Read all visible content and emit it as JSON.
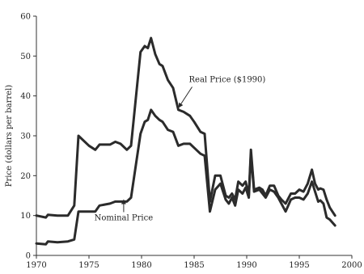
{
  "chart_data": {
    "type": "line",
    "ylabel": "Price (dollars per barrel)",
    "xlim": [
      1970,
      2000
    ],
    "ylim": [
      0,
      60
    ],
    "x_ticks": [
      1970,
      1975,
      1980,
      1985,
      1990,
      1995,
      2000
    ],
    "y_ticks": [
      0,
      10,
      20,
      30,
      40,
      50,
      60
    ],
    "series": [
      {
        "name": "Real Price ($1990)",
        "x": [
          1970,
          1970.9,
          1971.1,
          1972,
          1973,
          1973.6,
          1974,
          1975,
          1975.6,
          1976,
          1977,
          1977.5,
          1978,
          1978.6,
          1979,
          1979.9,
          1980.3,
          1980.6,
          1980.9,
          1981.3,
          1981.7,
          1982,
          1982.5,
          1983,
          1983.5,
          1984,
          1984.6,
          1985,
          1985.6,
          1986,
          1986.5,
          1987,
          1987.5,
          1988,
          1988.3,
          1988.6,
          1988.9,
          1989.2,
          1989.6,
          1989.9,
          1990.2,
          1990.4,
          1990.7,
          1991.2,
          1991.5,
          1991.8,
          1992.2,
          1992.6,
          1993,
          1993.3,
          1993.7,
          1994.2,
          1994.6,
          1995,
          1995.4,
          1995.8,
          1996.2,
          1996.5,
          1996.8,
          1997,
          1997.3,
          1997.6,
          1997.9,
          1998.4
        ],
        "values": [
          10,
          9.5,
          10.2,
          10,
          10,
          12.5,
          30,
          27.5,
          26.5,
          27.8,
          27.8,
          28.5,
          28,
          26.5,
          27.5,
          51,
          52.5,
          52,
          54.5,
          50.5,
          48,
          47.5,
          44,
          42,
          36.5,
          36,
          35,
          33.5,
          31,
          30.5,
          13.5,
          20,
          20,
          15,
          14.5,
          15.5,
          14,
          18.5,
          17.5,
          18.5,
          15,
          26.5,
          16.5,
          17,
          16.5,
          15,
          17.5,
          17.5,
          15,
          14,
          13,
          15.5,
          15.5,
          16.5,
          16,
          18,
          21.5,
          18,
          16.5,
          16.8,
          16.5,
          14,
          12,
          10
        ]
      },
      {
        "name": "Nominal Price",
        "x": [
          1970,
          1970.9,
          1971.1,
          1972,
          1973,
          1973.6,
          1974,
          1975,
          1975.6,
          1976,
          1977,
          1977.5,
          1978,
          1978.6,
          1979,
          1979.9,
          1980.3,
          1980.6,
          1980.9,
          1981.3,
          1981.7,
          1982,
          1982.5,
          1983,
          1983.5,
          1984,
          1984.6,
          1985,
          1985.6,
          1986,
          1986.5,
          1987,
          1987.5,
          1988,
          1988.3,
          1988.6,
          1988.9,
          1989.2,
          1989.6,
          1989.9,
          1990.2,
          1990.4,
          1990.7,
          1991.2,
          1991.5,
          1991.8,
          1992.2,
          1992.6,
          1993,
          1993.3,
          1993.7,
          1994.2,
          1994.6,
          1995,
          1995.4,
          1995.8,
          1996.2,
          1996.5,
          1996.8,
          1997,
          1997.3,
          1997.6,
          1997.9,
          1998.4
        ],
        "values": [
          3,
          2.8,
          3.5,
          3.3,
          3.5,
          4,
          11,
          11,
          11,
          12.5,
          13,
          13.5,
          13.5,
          13.5,
          14.5,
          30.5,
          33.5,
          34,
          36.5,
          35,
          34,
          33.5,
          31.5,
          31,
          27.5,
          28,
          28,
          27,
          25.5,
          25,
          11,
          16.5,
          18,
          14,
          13,
          14.5,
          12.5,
          16.5,
          15.5,
          17,
          14.5,
          25.5,
          16,
          16.5,
          15.5,
          14.5,
          16.5,
          16,
          14.5,
          13,
          11,
          14,
          14.5,
          14.5,
          14,
          15.5,
          18.5,
          16,
          13.5,
          13.8,
          13,
          9.5,
          9,
          7.5
        ]
      }
    ],
    "annotations": [
      {
        "text": "Real Price ($1990)",
        "series": "Real Price ($1990)",
        "x": 1983.5,
        "y": 37
      },
      {
        "text": "Nominal Price",
        "series": "Nominal Price",
        "x": 1978.3,
        "y": 14.5
      }
    ],
    "grid": false,
    "legend": "none"
  }
}
